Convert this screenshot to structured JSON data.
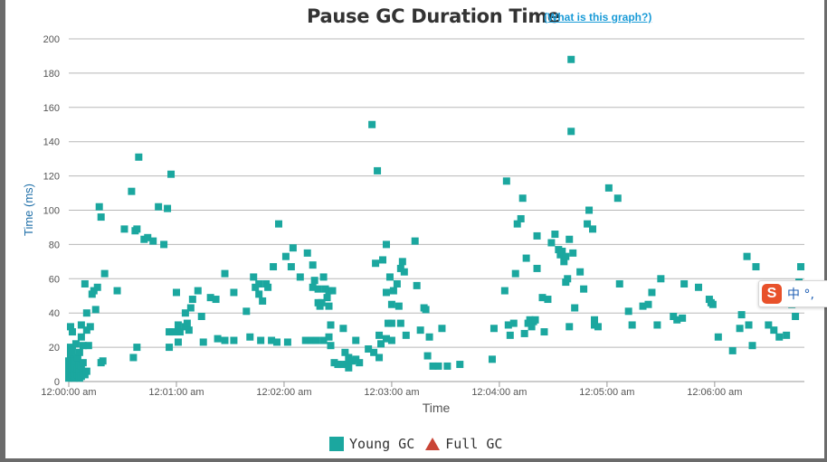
{
  "header": {
    "title": "Pause GC Duration Time",
    "help_link": "(What is this graph?)"
  },
  "ime": {
    "logo_glyph": "S",
    "label": "中 °,",
    "color": "#e8512a"
  },
  "chart_data": {
    "type": "scatter",
    "title": "Pause GC Duration Time",
    "xlabel": "Time",
    "ylabel": "Time (ms)",
    "ylim": [
      0,
      200
    ],
    "yticks": [
      0,
      20,
      40,
      60,
      80,
      100,
      120,
      140,
      160,
      180,
      200
    ],
    "xlim": [
      0,
      410
    ],
    "xtick_seconds": [
      0,
      60,
      120,
      180,
      240,
      300,
      360
    ],
    "xtick_labels": [
      "12:00:00 am",
      "12:01:00 am",
      "12:02:00 am",
      "12:03:00 am",
      "12:04:00 am",
      "12:05:00 am",
      "12:06:00 am"
    ],
    "grid": true,
    "legend_position": "bottom",
    "series": [
      {
        "name": "Young GC",
        "color": "#1ba79f",
        "marker": "square",
        "points": [
          [
            0,
            2
          ],
          [
            0,
            5
          ],
          [
            0,
            8
          ],
          [
            0,
            12
          ],
          [
            1,
            3
          ],
          [
            1,
            6
          ],
          [
            1,
            10
          ],
          [
            1,
            16
          ],
          [
            1,
            20
          ],
          [
            1,
            32
          ],
          [
            2,
            4
          ],
          [
            2,
            7
          ],
          [
            2,
            11
          ],
          [
            2,
            18
          ],
          [
            2,
            29
          ],
          [
            3,
            2
          ],
          [
            3,
            5
          ],
          [
            3,
            9
          ],
          [
            3,
            13
          ],
          [
            4,
            3
          ],
          [
            4,
            8
          ],
          [
            4,
            12
          ],
          [
            4,
            22
          ],
          [
            5,
            4
          ],
          [
            5,
            7
          ],
          [
            5,
            14
          ],
          [
            6,
            2
          ],
          [
            6,
            6
          ],
          [
            6,
            10
          ],
          [
            6,
            17
          ],
          [
            7,
            3
          ],
          [
            7,
            9
          ],
          [
            7,
            26
          ],
          [
            7,
            33
          ],
          [
            8,
            5
          ],
          [
            8,
            11
          ],
          [
            8,
            21
          ],
          [
            9,
            4
          ],
          [
            9,
            57
          ],
          [
            10,
            6
          ],
          [
            10,
            30
          ],
          [
            10,
            40
          ],
          [
            11,
            21
          ],
          [
            12,
            32
          ],
          [
            13,
            51
          ],
          [
            14,
            53
          ],
          [
            15,
            42
          ],
          [
            16,
            55
          ],
          [
            17,
            102
          ],
          [
            18,
            96
          ],
          [
            18,
            11
          ],
          [
            19,
            12
          ],
          [
            20,
            63
          ],
          [
            27,
            53
          ],
          [
            31,
            89
          ],
          [
            35,
            111
          ],
          [
            36,
            14
          ],
          [
            37,
            88
          ],
          [
            38,
            20
          ],
          [
            38,
            89
          ],
          [
            39,
            131
          ],
          [
            42,
            83
          ],
          [
            44,
            84
          ],
          [
            47,
            82
          ],
          [
            50,
            102
          ],
          [
            53,
            80
          ],
          [
            55,
            101
          ],
          [
            56,
            20
          ],
          [
            56,
            29
          ],
          [
            57,
            121
          ],
          [
            58,
            29
          ],
          [
            60,
            52
          ],
          [
            61,
            23
          ],
          [
            61,
            33
          ],
          [
            62,
            29
          ],
          [
            65,
            32
          ],
          [
            65,
            40
          ],
          [
            66,
            34
          ],
          [
            67,
            30
          ],
          [
            68,
            43
          ],
          [
            69,
            48
          ],
          [
            72,
            53
          ],
          [
            75,
            23
          ],
          [
            74,
            38
          ],
          [
            79,
            49
          ],
          [
            82,
            48
          ],
          [
            83,
            25
          ],
          [
            87,
            24
          ],
          [
            87,
            63
          ],
          [
            92,
            24
          ],
          [
            92,
            52
          ],
          [
            99,
            41
          ],
          [
            101,
            26
          ],
          [
            103,
            61
          ],
          [
            104,
            55
          ],
          [
            106,
            57
          ],
          [
            106,
            51
          ],
          [
            107,
            24
          ],
          [
            108,
            47
          ],
          [
            110,
            57
          ],
          [
            111,
            55
          ],
          [
            113,
            24
          ],
          [
            114,
            67
          ],
          [
            116,
            23
          ],
          [
            117,
            92
          ],
          [
            121,
            73
          ],
          [
            122,
            23
          ],
          [
            124,
            67
          ],
          [
            125,
            78
          ],
          [
            129,
            61
          ],
          [
            132,
            24
          ],
          [
            133,
            75
          ],
          [
            135,
            24
          ],
          [
            136,
            68
          ],
          [
            136,
            55
          ],
          [
            137,
            59
          ],
          [
            138,
            24
          ],
          [
            139,
            54
          ],
          [
            139,
            46
          ],
          [
            140,
            44
          ],
          [
            141,
            46
          ],
          [
            142,
            61
          ],
          [
            142,
            24
          ],
          [
            143,
            54
          ],
          [
            144,
            49
          ],
          [
            145,
            26
          ],
          [
            145,
            53
          ],
          [
            145,
            44
          ],
          [
            146,
            33
          ],
          [
            146,
            21
          ],
          [
            147,
            53
          ],
          [
            148,
            11
          ],
          [
            150,
            10
          ],
          [
            152,
            10
          ],
          [
            153,
            31
          ],
          [
            154,
            17
          ],
          [
            155,
            10
          ],
          [
            156,
            8
          ],
          [
            156,
            14
          ],
          [
            158,
            12
          ],
          [
            160,
            13
          ],
          [
            160,
            24
          ],
          [
            162,
            11
          ],
          [
            167,
            19
          ],
          [
            169,
            150
          ],
          [
            170,
            17
          ],
          [
            171,
            69
          ],
          [
            172,
            123
          ],
          [
            173,
            14
          ],
          [
            173,
            27
          ],
          [
            174,
            22
          ],
          [
            175,
            71
          ],
          [
            177,
            80
          ],
          [
            177,
            52
          ],
          [
            177,
            25
          ],
          [
            178,
            34
          ],
          [
            179,
            61
          ],
          [
            180,
            24
          ],
          [
            180,
            45
          ],
          [
            180,
            34
          ],
          [
            181,
            53
          ],
          [
            183,
            57
          ],
          [
            184,
            44
          ],
          [
            185,
            34
          ],
          [
            185,
            66
          ],
          [
            186,
            70
          ],
          [
            187,
            64
          ],
          [
            188,
            27
          ],
          [
            193,
            82
          ],
          [
            194,
            56
          ],
          [
            196,
            30
          ],
          [
            198,
            43
          ],
          [
            199,
            42
          ],
          [
            200,
            15
          ],
          [
            201,
            26
          ],
          [
            203,
            9
          ],
          [
            206,
            9
          ],
          [
            208,
            31
          ],
          [
            211,
            9
          ],
          [
            218,
            10
          ],
          [
            236,
            13
          ],
          [
            237,
            31
          ],
          [
            243,
            53
          ],
          [
            244,
            117
          ],
          [
            245,
            33
          ],
          [
            246,
            27
          ],
          [
            248,
            34
          ],
          [
            249,
            63
          ],
          [
            250,
            92
          ],
          [
            252,
            95
          ],
          [
            253,
            107
          ],
          [
            254,
            28
          ],
          [
            255,
            72
          ],
          [
            256,
            34
          ],
          [
            257,
            36
          ],
          [
            258,
            32
          ],
          [
            259,
            35
          ],
          [
            260,
            36
          ],
          [
            261,
            66
          ],
          [
            261,
            85
          ],
          [
            264,
            49
          ],
          [
            265,
            29
          ],
          [
            267,
            48
          ],
          [
            269,
            81
          ],
          [
            271,
            86
          ],
          [
            273,
            77
          ],
          [
            274,
            74
          ],
          [
            275,
            76
          ],
          [
            276,
            70
          ],
          [
            277,
            58
          ],
          [
            277,
            73
          ],
          [
            278,
            60
          ],
          [
            279,
            83
          ],
          [
            279,
            32
          ],
          [
            280,
            188
          ],
          [
            280,
            146
          ],
          [
            281,
            75
          ],
          [
            282,
            43
          ],
          [
            285,
            64
          ],
          [
            287,
            54
          ],
          [
            289,
            92
          ],
          [
            290,
            100
          ],
          [
            292,
            89
          ],
          [
            293,
            36
          ],
          [
            293,
            33
          ],
          [
            295,
            32
          ],
          [
            301,
            113
          ],
          [
            306,
            107
          ],
          [
            307,
            57
          ],
          [
            312,
            41
          ],
          [
            314,
            33
          ],
          [
            320,
            44
          ],
          [
            323,
            45
          ],
          [
            325,
            52
          ],
          [
            328,
            33
          ],
          [
            330,
            60
          ],
          [
            337,
            38
          ],
          [
            339,
            36
          ],
          [
            342,
            37
          ],
          [
            343,
            57
          ],
          [
            351,
            55
          ],
          [
            357,
            48
          ],
          [
            358,
            46
          ],
          [
            359,
            45
          ],
          [
            362,
            26
          ],
          [
            370,
            18
          ],
          [
            374,
            31
          ],
          [
            375,
            39
          ],
          [
            378,
            73
          ],
          [
            379,
            33
          ],
          [
            381,
            21
          ],
          [
            383,
            67
          ],
          [
            390,
            33
          ],
          [
            392,
            56
          ],
          [
            393,
            30
          ],
          [
            396,
            26
          ],
          [
            397,
            56
          ],
          [
            400,
            27
          ],
          [
            403,
            45
          ],
          [
            405,
            38
          ],
          [
            407,
            58
          ],
          [
            408,
            67
          ]
        ]
      },
      {
        "name": "Full GC",
        "color": "#c94537",
        "marker": "triangle",
        "points": []
      }
    ]
  }
}
